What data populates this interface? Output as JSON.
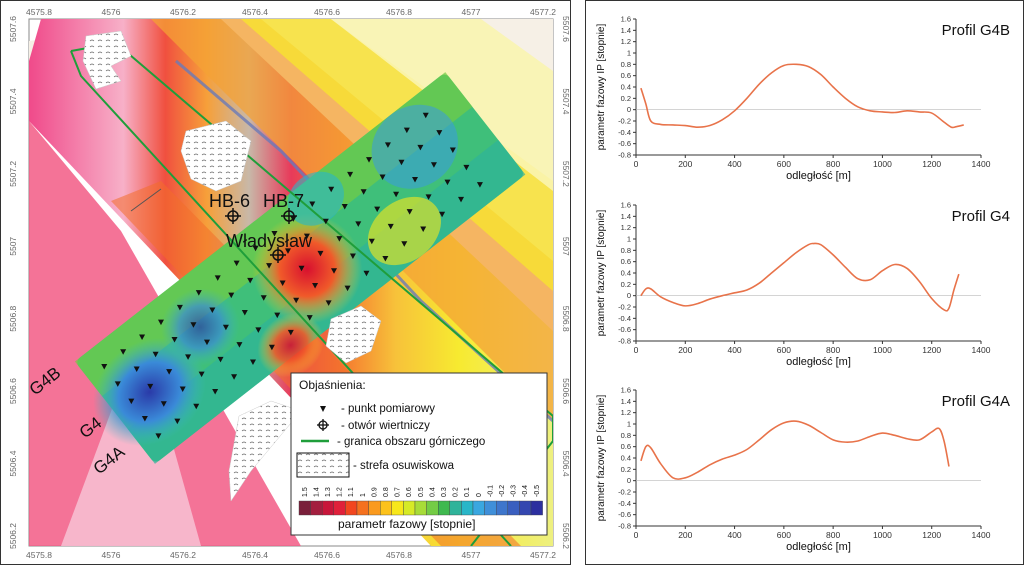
{
  "map": {
    "x_ticks": [
      "4575.8",
      "4576",
      "4576.2",
      "4576.4",
      "4576.6",
      "4576.8",
      "4577",
      "4577.2"
    ],
    "y_ticks": [
      "5507.6",
      "5507.4",
      "5507.2",
      "5507",
      "5506.8",
      "5506.6",
      "5506.4",
      "5506.2"
    ],
    "profile_labels": [
      "G4B",
      "G4",
      "G4A"
    ],
    "well_labels": [
      "HB-6",
      "HB-7"
    ],
    "place_label": "Władysław",
    "legend": {
      "title": "Objaśnienia:",
      "items": [
        {
          "symbol": "triangle-marker",
          "label": "- punkt pomiarowy"
        },
        {
          "symbol": "well-marker",
          "label": "- otwór wiertniczy"
        },
        {
          "symbol": "green-line",
          "label": "- granica obszaru górniczego"
        },
        {
          "symbol": "hatched-box",
          "label": "- strefa osuwiskowa"
        }
      ],
      "colorbar_labels": [
        "1.5",
        "1.4",
        "1.3",
        "1.2",
        "1.1",
        "1",
        "0.9",
        "0.8",
        "0.7",
        "0.6",
        "0.5",
        "0.4",
        "0.3",
        "0.2",
        "0.1",
        "0",
        "-0.1",
        "-0.2",
        "-0.3",
        "-0.4",
        "-0.5"
      ],
      "colorbar_colors": [
        "#7a1f3a",
        "#a31f3f",
        "#c8163a",
        "#e0203a",
        "#f2461f",
        "#f5711f",
        "#fa9a1e",
        "#fcc21b",
        "#f7e71b",
        "#d6ea26",
        "#a8dc38",
        "#74cc45",
        "#3fb94f",
        "#2fb39a",
        "#29b6c8",
        "#3aa7e0",
        "#3f8fd9",
        "#3e76cc",
        "#3a5fbf",
        "#3447b0",
        "#2c2f9f"
      ],
      "colorbar_title": "parametr fazowy [stopnie]"
    },
    "colors": {
      "mining_boundary": "#1f9e3a",
      "landslide": "#ffffff"
    }
  },
  "chart_data": [
    {
      "type": "line",
      "title": "Profil G4B",
      "xlabel": "odległość [m]",
      "ylabel": "parametr fazowy IP [stopnie]",
      "xlim": [
        0,
        1400
      ],
      "ylim": [
        -0.8,
        1.6
      ],
      "x_ticks": [
        0,
        200,
        400,
        600,
        800,
        1000,
        1200,
        1400
      ],
      "y_ticks": [
        -0.8,
        -0.6,
        -0.4,
        -0.2,
        0,
        0.2,
        0.4,
        0.6,
        0.8,
        1,
        1.2,
        1.4,
        1.6
      ],
      "y_tick_labels": [
        "-0.8",
        "-0.6",
        "-0.4",
        "-0.2",
        "0",
        "0.2",
        "0.4",
        "0.6",
        "0.8",
        "1",
        "1.2",
        "1.4",
        "1.6"
      ],
      "x_tick_labels": [
        "0",
        "200",
        "400",
        "600",
        "800",
        "1000",
        "1200",
        "1400"
      ],
      "series": [
        {
          "color": "#e8734a",
          "x": [
            20,
            40,
            60,
            100,
            150,
            200,
            250,
            300,
            350,
            400,
            450,
            500,
            550,
            600,
            650,
            700,
            750,
            800,
            850,
            900,
            950,
            1000,
            1050,
            1100,
            1150,
            1200,
            1250,
            1280,
            1300,
            1330
          ],
          "y": [
            0.38,
            0.1,
            -0.2,
            -0.26,
            -0.27,
            -0.28,
            -0.31,
            -0.28,
            -0.18,
            -0.02,
            0.2,
            0.45,
            0.65,
            0.78,
            0.8,
            0.76,
            0.62,
            0.4,
            0.2,
            0.05,
            -0.02,
            -0.04,
            -0.05,
            -0.02,
            -0.04,
            -0.06,
            -0.22,
            -0.31,
            -0.3,
            -0.27
          ]
        }
      ]
    },
    {
      "type": "line",
      "title": "Profil G4",
      "xlabel": "odległość [m]",
      "ylabel": "parametr fazowy IP [stopnie]",
      "xlim": [
        0,
        1400
      ],
      "ylim": [
        -0.8,
        1.6
      ],
      "x_ticks": [
        0,
        200,
        400,
        600,
        800,
        1000,
        1200,
        1400
      ],
      "y_ticks": [
        -0.8,
        -0.6,
        -0.4,
        -0.2,
        0,
        0.2,
        0.4,
        0.6,
        0.8,
        1,
        1.2,
        1.4,
        1.6
      ],
      "y_tick_labels": [
        "-0.8",
        "-0.6",
        "-0.4",
        "-0.2",
        "0",
        "0.2",
        "0.4",
        "0.6",
        "0.8",
        "1",
        "1.2",
        "1.4",
        "1.6"
      ],
      "x_tick_labels": [
        "0",
        "200",
        "400",
        "600",
        "800",
        "1000",
        "1200",
        "1400"
      ],
      "series": [
        {
          "color": "#e8734a",
          "x": [
            20,
            40,
            60,
            100,
            150,
            200,
            250,
            300,
            350,
            400,
            450,
            500,
            550,
            600,
            650,
            700,
            720,
            750,
            800,
            850,
            900,
            950,
            1000,
            1050,
            1100,
            1150,
            1200,
            1250,
            1270,
            1290,
            1310
          ],
          "y": [
            0.0,
            0.12,
            0.12,
            -0.02,
            -0.12,
            -0.18,
            -0.14,
            -0.06,
            0.0,
            0.05,
            0.1,
            0.22,
            0.4,
            0.58,
            0.76,
            0.9,
            0.92,
            0.9,
            0.72,
            0.5,
            0.3,
            0.28,
            0.44,
            0.55,
            0.48,
            0.25,
            -0.05,
            -0.25,
            -0.22,
            0.1,
            0.38
          ]
        }
      ]
    },
    {
      "type": "line",
      "title": "Profil G4A",
      "xlabel": "odległość [m]",
      "ylabel": "parametr fazowy IP [stopnie]",
      "xlim": [
        0,
        1400
      ],
      "ylim": [
        -0.8,
        1.6
      ],
      "x_ticks": [
        0,
        200,
        400,
        600,
        800,
        1000,
        1200,
        1400
      ],
      "y_ticks": [
        -0.8,
        -0.6,
        -0.4,
        -0.2,
        0,
        0.2,
        0.4,
        0.6,
        0.8,
        1,
        1.2,
        1.4,
        1.6
      ],
      "y_tick_labels": [
        "-0.8",
        "-0.6",
        "-0.4",
        "-0.2",
        "0",
        "0.2",
        "0.4",
        "0.6",
        "0.8",
        "1",
        "1.2",
        "1.4",
        "1.6"
      ],
      "x_tick_labels": [
        "0",
        "200",
        "400",
        "600",
        "800",
        "1000",
        "1200",
        "1400"
      ],
      "series": [
        {
          "color": "#e8734a",
          "x": [
            20,
            40,
            60,
            100,
            150,
            200,
            250,
            300,
            350,
            400,
            450,
            500,
            550,
            600,
            650,
            700,
            750,
            800,
            850,
            900,
            950,
            1000,
            1050,
            1100,
            1150,
            1200,
            1230,
            1250,
            1270
          ],
          "y": [
            0.35,
            0.6,
            0.58,
            0.3,
            0.05,
            0.05,
            0.15,
            0.28,
            0.38,
            0.45,
            0.55,
            0.72,
            0.9,
            1.02,
            1.05,
            0.98,
            0.85,
            0.72,
            0.68,
            0.7,
            0.78,
            0.84,
            0.8,
            0.74,
            0.72,
            0.86,
            0.92,
            0.7,
            0.25
          ]
        }
      ]
    }
  ]
}
